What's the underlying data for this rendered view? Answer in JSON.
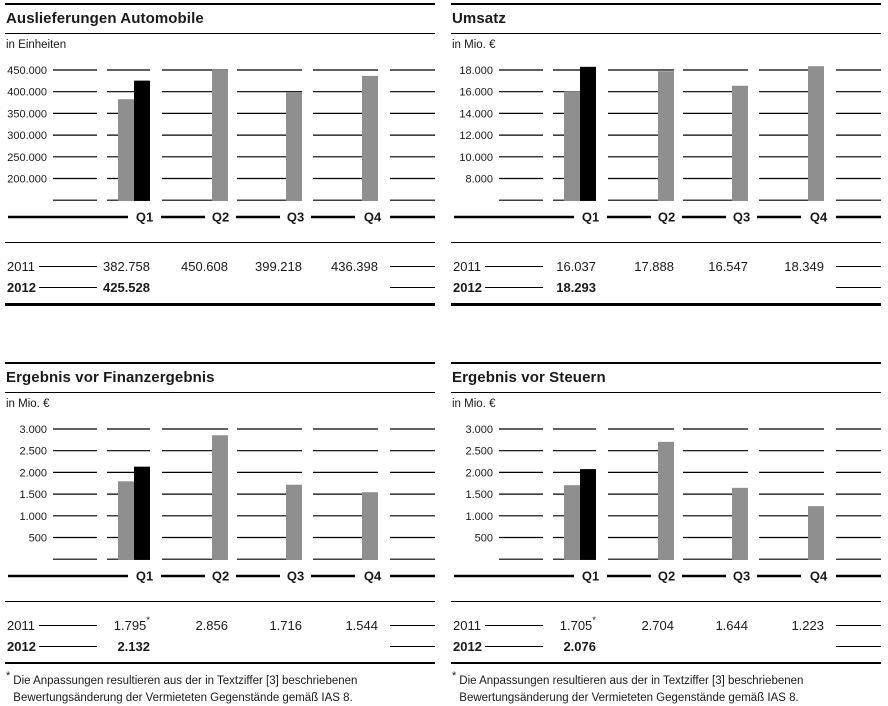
{
  "page": {
    "background": "#ffffff",
    "text_color": "#1a1a1a"
  },
  "colors": {
    "bar_2011": "#8f8f8f",
    "bar_2012": "#000000",
    "line": "#000000"
  },
  "footnote": {
    "marker": "*",
    "lines": [
      "Die Anpassungen resultieren aus der in Textziffer [3] beschriebenen",
      "Bewertungsänderung der Vermieteten Gegenstände gemäß IAS 8."
    ]
  },
  "chart_data": [
    {
      "id": "auslieferungen-automobile",
      "type": "bar",
      "title": "Auslieferungen Automobile",
      "unit_label": "in Einheiten",
      "categories": [
        "Q1",
        "Q2",
        "Q3",
        "Q4"
      ],
      "ymin": 150000,
      "ystep": 50000,
      "ylim": [
        150000,
        460000
      ],
      "ytick_labels": [
        "450.000",
        "400.000",
        "350.000",
        "300.000",
        "250.000",
        "200.000"
      ],
      "series": [
        {
          "year": "2011",
          "color": "#8f8f8f",
          "values": [
            382758,
            450608,
            399218,
            436398
          ],
          "display": [
            "382.758",
            "450.608",
            "399.218",
            "436.398"
          ],
          "marker": ""
        },
        {
          "year": "2012",
          "color": "#000000",
          "values": [
            425528,
            null,
            null,
            null
          ],
          "display": [
            "425.528"
          ],
          "marker": ""
        }
      ]
    },
    {
      "id": "umsatz",
      "type": "bar",
      "title": "Umsatz",
      "unit_label": "in Mio. €",
      "categories": [
        "Q1",
        "Q2",
        "Q3",
        "Q4"
      ],
      "ymin": 6000,
      "ystep": 2000,
      "ylim": [
        6000,
        18600
      ],
      "ytick_labels": [
        "18.000",
        "16.000",
        "14.000",
        "12.000",
        "10.000",
        "8.000"
      ],
      "series": [
        {
          "year": "2011",
          "color": "#8f8f8f",
          "values": [
            16037,
            17888,
            16547,
            18349
          ],
          "display": [
            "16.037",
            "17.888",
            "16.547",
            "18.349"
          ],
          "marker": ""
        },
        {
          "year": "2012",
          "color": "#000000",
          "values": [
            18293,
            null,
            null,
            null
          ],
          "display": [
            "18.293"
          ],
          "marker": ""
        }
      ]
    },
    {
      "id": "ergebnis-vor-finanzergebnis",
      "type": "bar",
      "title": "Ergebnis vor Finanzergebnis",
      "unit_label": "in Mio. €",
      "categories": [
        "Q1",
        "Q2",
        "Q3",
        "Q4"
      ],
      "ymin": 0,
      "ystep": 500,
      "ylim": [
        0,
        3150
      ],
      "ytick_labels": [
        "3.000",
        "2.500",
        "2.000",
        "1.500",
        "1.000",
        "500"
      ],
      "series": [
        {
          "year": "2011",
          "color": "#8f8f8f",
          "values": [
            1795,
            2856,
            1716,
            1544
          ],
          "display": [
            "1.795",
            "2.856",
            "1.716",
            "1.544"
          ],
          "marker": "*"
        },
        {
          "year": "2012",
          "color": "#000000",
          "values": [
            2132,
            null,
            null,
            null
          ],
          "display": [
            "2.132"
          ],
          "marker": ""
        }
      ]
    },
    {
      "id": "ergebnis-vor-steuern",
      "type": "bar",
      "title": "Ergebnis vor Steuern",
      "unit_label": "in Mio. €",
      "categories": [
        "Q1",
        "Q2",
        "Q3",
        "Q4"
      ],
      "ymin": 0,
      "ystep": 500,
      "ylim": [
        0,
        3150
      ],
      "ytick_labels": [
        "3.000",
        "2.500",
        "2.000",
        "1.500",
        "1.000",
        "500"
      ],
      "series": [
        {
          "year": "2011",
          "color": "#8f8f8f",
          "values": [
            1705,
            2704,
            1644,
            1223
          ],
          "display": [
            "1.705",
            "2.704",
            "1.644",
            "1.223"
          ],
          "marker": "*"
        },
        {
          "year": "2012",
          "color": "#000000",
          "values": [
            2076,
            null,
            null,
            null
          ],
          "display": [
            "2.076"
          ],
          "marker": ""
        }
      ]
    }
  ]
}
